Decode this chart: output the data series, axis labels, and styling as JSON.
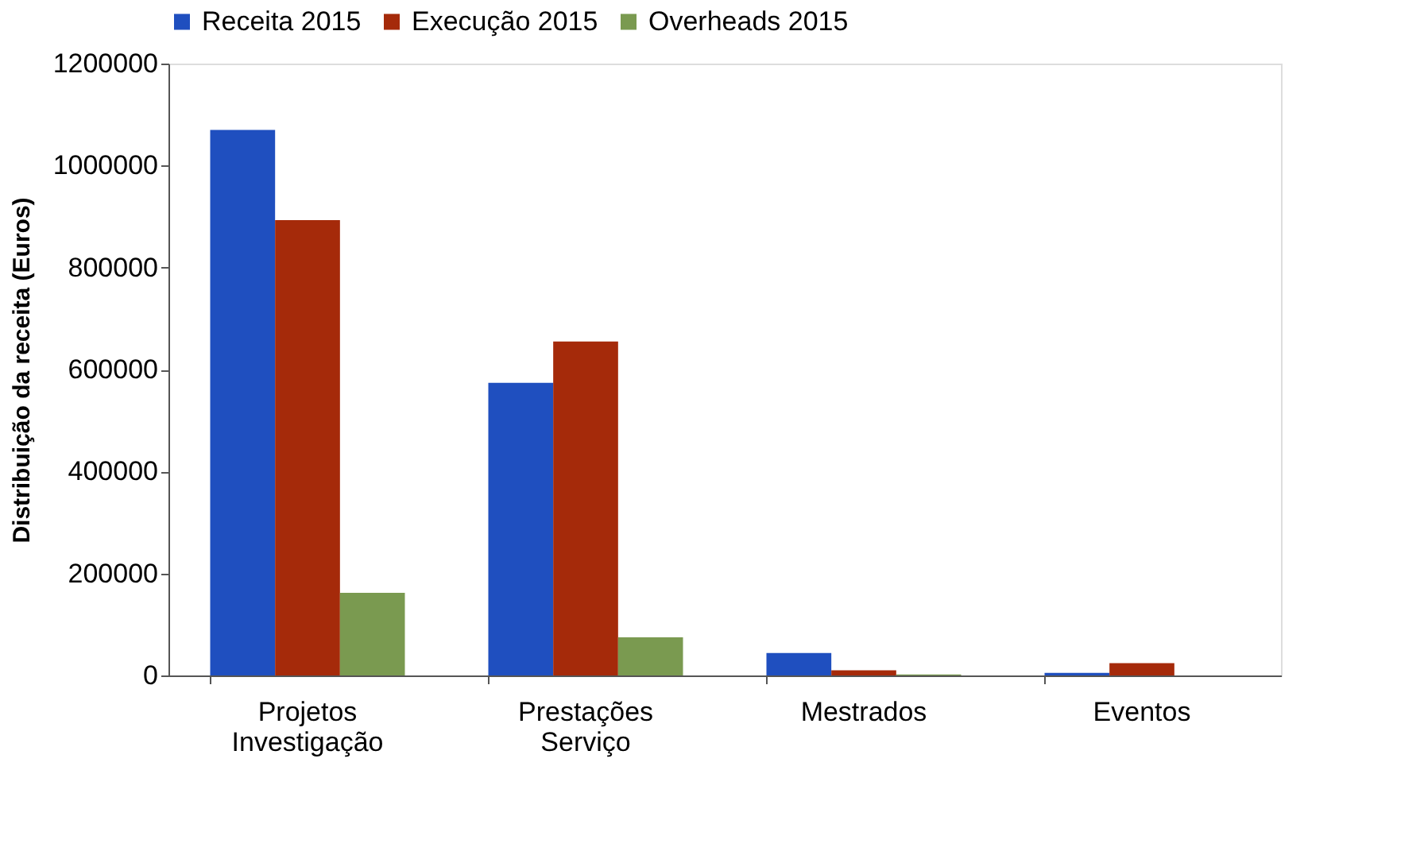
{
  "chart_data": {
    "type": "bar",
    "ylabel": "Distribuição da receita (Euros)",
    "categories": [
      "Projetos\nInvestigação",
      "Prestações\nServiço",
      "Mestrados",
      "Eventos"
    ],
    "series": [
      {
        "name": "Receita 2015",
        "color": "#1f4fbf",
        "values": [
          1070000,
          574000,
          44000,
          5000
        ]
      },
      {
        "name": "Execução 2015",
        "color": "#a52a0a",
        "values": [
          893000,
          655000,
          10000,
          24000
        ]
      },
      {
        "name": "Overheads 2015",
        "color": "#7a9a50",
        "values": [
          162000,
          75000,
          2000,
          0
        ]
      }
    ],
    "ylim": [
      0,
      1200000
    ],
    "yticks": [
      0,
      200000,
      400000,
      600000,
      800000,
      1000000,
      1200000
    ],
    "grid": false,
    "legend": "top"
  }
}
